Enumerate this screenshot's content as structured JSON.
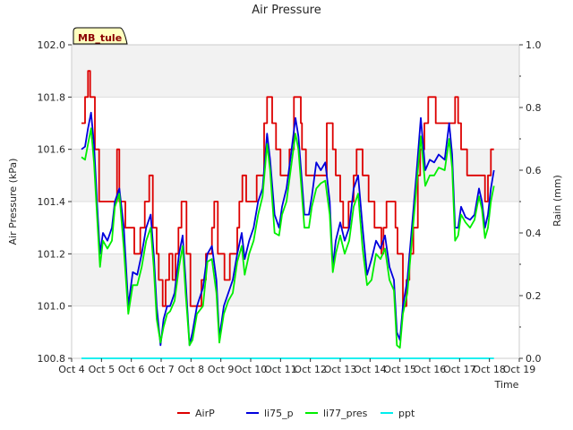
{
  "chart_data": {
    "type": "line",
    "title": "Air Pressure",
    "xlabel": "Time",
    "ylabel": "Air Pressure (kPa)",
    "y2label": "Rain (mm)",
    "annotation": "MB_tule",
    "xlim": [
      4,
      19
    ],
    "ylim": [
      100.8,
      102.0
    ],
    "y2lim": [
      0.0,
      1.0
    ],
    "grid": "horizontal bands",
    "legend_position": "bottom-center",
    "x_ticks": [
      4,
      5,
      6,
      7,
      8,
      9,
      10,
      11,
      12,
      13,
      14,
      15,
      16,
      17,
      18,
      19
    ],
    "x_tick_labels": [
      "Oct 4",
      "Oct 5",
      "Oct 6",
      "Oct 7",
      "Oct 8",
      "Oct 9",
      "Oct 10",
      "Oct 11",
      "Oct 12",
      "Oct 13",
      "Oct 14",
      "Oct 15",
      "Oct 16",
      "Oct 17",
      "Oct 18",
      "Oct 19"
    ],
    "y_ticks": [
      100.8,
      101.0,
      101.2,
      101.4,
      101.6,
      101.8,
      102.0
    ],
    "y_tick_labels": [
      "100.8",
      "101.0",
      "101.2",
      "101.4",
      "101.6",
      "101.8",
      "102.0"
    ],
    "y2_ticks": [
      0.0,
      0.2,
      0.4,
      0.6,
      0.8,
      1.0
    ],
    "y2_tick_labels": [
      "0.0",
      "0.2",
      "0.4",
      "0.6",
      "0.8",
      "1.0"
    ],
    "series": [
      {
        "name": "AirP",
        "color": "#dd0000",
        "axis": "left",
        "step": true,
        "x": [
          4.33,
          4.45,
          4.55,
          4.62,
          4.78,
          4.92,
          5.05,
          5.3,
          5.52,
          5.6,
          5.8,
          5.98,
          6.1,
          6.3,
          6.45,
          6.6,
          6.72,
          6.85,
          6.92,
          7.05,
          7.15,
          7.27,
          7.38,
          7.48,
          7.58,
          7.62,
          7.68,
          7.75,
          7.85,
          7.98,
          8.15,
          8.35,
          8.5,
          8.7,
          8.78,
          8.9,
          9.12,
          9.3,
          9.45,
          9.55,
          9.62,
          9.72,
          9.85,
          10.05,
          10.2,
          10.32,
          10.45,
          10.55,
          10.72,
          10.85,
          11.0,
          11.3,
          11.45,
          11.55,
          11.68,
          11.72,
          11.85,
          12.0,
          12.45,
          12.55,
          12.75,
          12.85,
          12.95,
          13.0,
          13.1,
          13.28,
          13.45,
          13.55,
          13.65,
          13.75,
          13.95,
          14.15,
          14.38,
          14.45,
          14.55,
          14.85,
          14.92,
          15.1,
          15.22,
          15.32,
          15.45,
          15.6,
          15.68,
          15.82,
          15.95,
          16.0,
          16.2,
          16.5,
          16.7,
          16.85,
          16.95,
          17.05,
          17.25,
          17.55,
          17.62,
          17.72,
          17.85,
          17.95,
          18.05,
          18.15
        ],
        "values": [
          101.7,
          101.8,
          101.9,
          101.8,
          101.6,
          101.4,
          101.4,
          101.4,
          101.6,
          101.4,
          101.3,
          101.3,
          101.2,
          101.3,
          101.4,
          101.5,
          101.3,
          101.2,
          101.1,
          101.0,
          101.1,
          101.2,
          101.1,
          101.2,
          101.3,
          101.3,
          101.4,
          101.4,
          101.2,
          101.0,
          101.0,
          101.1,
          101.2,
          101.3,
          101.4,
          101.2,
          101.1,
          101.2,
          101.2,
          101.3,
          101.4,
          101.5,
          101.4,
          101.4,
          101.5,
          101.5,
          101.7,
          101.8,
          101.7,
          101.6,
          101.5,
          101.6,
          101.8,
          101.8,
          101.7,
          101.6,
          101.5,
          101.5,
          101.5,
          101.7,
          101.6,
          101.5,
          101.5,
          101.4,
          101.3,
          101.4,
          101.5,
          101.6,
          101.6,
          101.5,
          101.4,
          101.3,
          101.2,
          101.3,
          101.4,
          101.3,
          101.2,
          101.0,
          101.1,
          101.2,
          101.3,
          101.5,
          101.6,
          101.7,
          101.8,
          101.8,
          101.7,
          101.7,
          101.7,
          101.8,
          101.7,
          101.6,
          101.5,
          101.5,
          101.5,
          101.5,
          101.4,
          101.5,
          101.6,
          101.6
        ]
      },
      {
        "name": "li75_p",
        "color": "#0000dd",
        "axis": "left",
        "step": false,
        "x": [
          4.33,
          4.45,
          4.55,
          4.65,
          4.75,
          4.85,
          4.95,
          5.05,
          5.2,
          5.35,
          5.45,
          5.6,
          5.75,
          5.9,
          6.05,
          6.2,
          6.35,
          6.5,
          6.65,
          6.75,
          6.85,
          6.98,
          7.08,
          7.2,
          7.3,
          7.45,
          7.6,
          7.72,
          7.82,
          7.95,
          8.05,
          8.2,
          8.4,
          8.55,
          8.7,
          8.85,
          8.95,
          9.1,
          9.25,
          9.4,
          9.55,
          9.7,
          9.8,
          9.95,
          10.1,
          10.25,
          10.4,
          10.55,
          10.65,
          10.8,
          10.95,
          11.05,
          11.2,
          11.35,
          11.5,
          11.6,
          11.7,
          11.8,
          11.95,
          12.05,
          12.2,
          12.35,
          12.5,
          12.65,
          12.75,
          12.85,
          13.0,
          13.15,
          13.3,
          13.45,
          13.6,
          13.75,
          13.9,
          14.05,
          14.2,
          14.35,
          14.5,
          14.65,
          14.8,
          14.9,
          15.0,
          15.1,
          15.25,
          15.4,
          15.55,
          15.7,
          15.85,
          16.0,
          16.15,
          16.3,
          16.5,
          16.65,
          16.75,
          16.85,
          16.95,
          17.05,
          17.2,
          17.35,
          17.5,
          17.65,
          17.75,
          17.85,
          17.95,
          18.05,
          18.15
        ],
        "values": [
          101.6,
          101.61,
          101.68,
          101.74,
          101.62,
          101.4,
          101.2,
          101.28,
          101.25,
          101.3,
          101.4,
          101.45,
          101.3,
          101.0,
          101.13,
          101.12,
          101.2,
          101.3,
          101.35,
          101.2,
          101.0,
          100.85,
          100.95,
          101.0,
          101.0,
          101.05,
          101.2,
          101.27,
          101.1,
          100.85,
          100.9,
          101.0,
          101.07,
          101.2,
          101.23,
          101.1,
          100.88,
          101.0,
          101.05,
          101.1,
          101.2,
          101.28,
          101.18,
          101.25,
          101.3,
          101.4,
          101.45,
          101.66,
          101.56,
          101.35,
          101.3,
          101.38,
          101.45,
          101.58,
          101.72,
          101.65,
          101.5,
          101.35,
          101.35,
          101.42,
          101.55,
          101.52,
          101.55,
          101.4,
          101.15,
          101.25,
          101.32,
          101.25,
          101.3,
          101.45,
          101.5,
          101.3,
          101.12,
          101.18,
          101.25,
          101.22,
          101.27,
          101.15,
          101.1,
          100.9,
          100.87,
          101.0,
          101.1,
          101.3,
          101.5,
          101.72,
          101.52,
          101.56,
          101.55,
          101.58,
          101.56,
          101.7,
          101.58,
          101.3,
          101.3,
          101.38,
          101.34,
          101.33,
          101.35,
          101.45,
          101.4,
          101.3,
          101.35,
          101.45,
          101.52
        ]
      },
      {
        "name": "li77_pres",
        "color": "#00ee00",
        "axis": "left",
        "step": false,
        "x": [
          4.33,
          4.45,
          4.55,
          4.65,
          4.75,
          4.85,
          4.95,
          5.05,
          5.2,
          5.35,
          5.45,
          5.6,
          5.75,
          5.9,
          6.05,
          6.2,
          6.35,
          6.5,
          6.65,
          6.75,
          6.85,
          6.98,
          7.08,
          7.2,
          7.3,
          7.45,
          7.6,
          7.72,
          7.82,
          7.95,
          8.05,
          8.2,
          8.4,
          8.55,
          8.7,
          8.85,
          8.95,
          9.1,
          9.25,
          9.4,
          9.55,
          9.7,
          9.8,
          9.95,
          10.1,
          10.25,
          10.4,
          10.55,
          10.65,
          10.8,
          10.95,
          11.05,
          11.2,
          11.35,
          11.5,
          11.6,
          11.7,
          11.8,
          11.95,
          12.05,
          12.2,
          12.35,
          12.5,
          12.65,
          12.75,
          12.85,
          13.0,
          13.15,
          13.3,
          13.45,
          13.6,
          13.75,
          13.9,
          14.05,
          14.2,
          14.35,
          14.5,
          14.65,
          14.8,
          14.9,
          15.0,
          15.1,
          15.25,
          15.4,
          15.55,
          15.7,
          15.85,
          16.0,
          16.15,
          16.3,
          16.5,
          16.65,
          16.75,
          16.85,
          16.95,
          17.05,
          17.2,
          17.35,
          17.5,
          17.65,
          17.75,
          17.85,
          17.95,
          18.05,
          18.15
        ],
        "values": [
          101.57,
          101.56,
          101.62,
          101.68,
          101.55,
          101.35,
          101.15,
          101.25,
          101.22,
          101.25,
          101.38,
          101.43,
          101.22,
          100.97,
          101.08,
          101.08,
          101.15,
          101.25,
          101.3,
          101.15,
          100.95,
          100.86,
          100.92,
          100.97,
          100.98,
          101.02,
          101.15,
          101.23,
          101.05,
          100.85,
          100.87,
          100.97,
          101.0,
          101.17,
          101.18,
          101.05,
          100.86,
          100.97,
          101.02,
          101.05,
          101.17,
          101.23,
          101.12,
          101.2,
          101.25,
          101.35,
          101.42,
          101.62,
          101.52,
          101.28,
          101.27,
          101.35,
          101.4,
          101.53,
          101.66,
          101.6,
          101.45,
          101.3,
          101.3,
          101.38,
          101.45,
          101.47,
          101.48,
          101.35,
          101.13,
          101.2,
          101.27,
          101.2,
          101.25,
          101.38,
          101.43,
          101.22,
          101.08,
          101.1,
          101.2,
          101.18,
          101.22,
          101.1,
          101.06,
          100.85,
          100.84,
          100.97,
          101.05,
          101.25,
          101.45,
          101.65,
          101.46,
          101.5,
          101.5,
          101.53,
          101.52,
          101.64,
          101.53,
          101.25,
          101.27,
          101.35,
          101.32,
          101.3,
          101.33,
          101.42,
          101.37,
          101.26,
          101.3,
          101.4,
          101.46
        ]
      },
      {
        "name": "ppt",
        "color": "#00eeee",
        "axis": "right",
        "step": false,
        "x": [
          4.33,
          18.15
        ],
        "values": [
          0.0,
          0.0
        ]
      }
    ]
  }
}
